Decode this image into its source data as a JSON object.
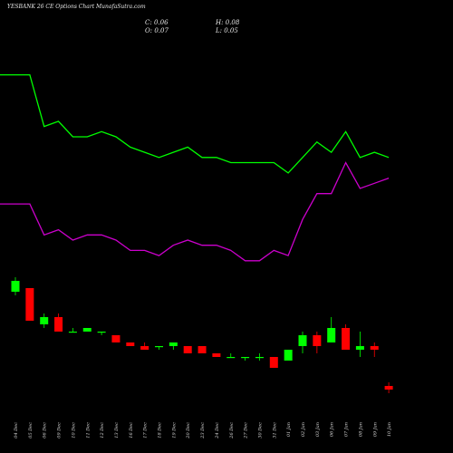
{
  "chart_data": {
    "type": "candlestick",
    "title": "YESBANK 26 CE Options Chart MunafaSutra.com",
    "ohlc_readout": {
      "c": "C: 0.06",
      "h": "H: 0.08",
      "o": "O: 0.07",
      "l": "L: 0.05"
    },
    "colors": {
      "background": "#000000",
      "up": "#00ff00",
      "down": "#ff0000",
      "upper_line": "#00ff00",
      "lower_line": "#cc00cc"
    },
    "categories": [
      "04 Dec",
      "05 Dec",
      "06 Dec",
      "09 Dec",
      "10 Dec",
      "11 Dec",
      "12 Dec",
      "13 Dec",
      "16 Dec",
      "17 Dec",
      "18 Dec",
      "19 Dec",
      "20 Dec",
      "23 Dec",
      "24 Dec",
      "26 Dec",
      "27 Dec",
      "30 Dec",
      "31 Dec",
      "01 Jan",
      "02 Jan",
      "03 Jan",
      "06 Jan",
      "07 Jan",
      "08 Jan",
      "09 Jan",
      "10 Jan"
    ],
    "candles": [
      {
        "o": 0.33,
        "h": 0.37,
        "l": 0.32,
        "c": 0.36
      },
      {
        "o": 0.34,
        "h": 0.34,
        "l": 0.25,
        "c": 0.25
      },
      {
        "o": 0.24,
        "h": 0.27,
        "l": 0.23,
        "c": 0.26
      },
      {
        "o": 0.26,
        "h": 0.27,
        "l": 0.22,
        "c": 0.22
      },
      {
        "o": 0.22,
        "h": 0.23,
        "l": 0.22,
        "c": 0.22
      },
      {
        "o": 0.22,
        "h": 0.23,
        "l": 0.22,
        "c": 0.23
      },
      {
        "o": 0.22,
        "h": 0.22,
        "l": 0.21,
        "c": 0.22
      },
      {
        "o": 0.21,
        "h": 0.21,
        "l": 0.19,
        "c": 0.19
      },
      {
        "o": 0.19,
        "h": 0.19,
        "l": 0.18,
        "c": 0.18
      },
      {
        "o": 0.18,
        "h": 0.19,
        "l": 0.17,
        "c": 0.17
      },
      {
        "o": 0.18,
        "h": 0.18,
        "l": 0.17,
        "c": 0.18
      },
      {
        "o": 0.18,
        "h": 0.19,
        "l": 0.17,
        "c": 0.19
      },
      {
        "o": 0.18,
        "h": 0.18,
        "l": 0.16,
        "c": 0.16
      },
      {
        "o": 0.18,
        "h": 0.18,
        "l": 0.16,
        "c": 0.16
      },
      {
        "o": 0.16,
        "h": 0.16,
        "l": 0.15,
        "c": 0.15
      },
      {
        "o": 0.15,
        "h": 0.16,
        "l": 0.15,
        "c": 0.15
      },
      {
        "o": 0.15,
        "h": 0.15,
        "l": 0.14,
        "c": 0.15
      },
      {
        "o": 0.15,
        "h": 0.16,
        "l": 0.14,
        "c": 0.15
      },
      {
        "o": 0.15,
        "h": 0.15,
        "l": 0.12,
        "c": 0.12
      },
      {
        "o": 0.14,
        "h": 0.17,
        "l": 0.14,
        "c": 0.17
      },
      {
        "o": 0.18,
        "h": 0.22,
        "l": 0.16,
        "c": 0.21
      },
      {
        "o": 0.21,
        "h": 0.22,
        "l": 0.16,
        "c": 0.18
      },
      {
        "o": 0.19,
        "h": 0.26,
        "l": 0.19,
        "c": 0.23
      },
      {
        "o": 0.23,
        "h": 0.24,
        "l": 0.17,
        "c": 0.17
      },
      {
        "o": 0.17,
        "h": 0.22,
        "l": 0.15,
        "c": 0.18
      },
      {
        "o": 0.18,
        "h": 0.19,
        "l": 0.15,
        "c": 0.17
      },
      {
        "o": 0.07,
        "h": 0.08,
        "l": 0.05,
        "c": 0.06
      }
    ],
    "upper_line": [
      0.82,
      0.82,
      0.72,
      0.73,
      0.7,
      0.7,
      0.71,
      0.7,
      0.68,
      0.67,
      0.66,
      0.67,
      0.68,
      0.66,
      0.66,
      0.65,
      0.65,
      0.65,
      0.65,
      0.63,
      0.66,
      0.69,
      0.67,
      0.71,
      0.66,
      0.67,
      0.66
    ],
    "lower_line": [
      0.57,
      0.57,
      0.51,
      0.52,
      0.5,
      0.51,
      0.51,
      0.5,
      0.48,
      0.48,
      0.47,
      0.49,
      0.5,
      0.49,
      0.49,
      0.48,
      0.46,
      0.46,
      0.48,
      0.47,
      0.54,
      0.59,
      0.59,
      0.65,
      0.6,
      0.61,
      0.62
    ]
  }
}
